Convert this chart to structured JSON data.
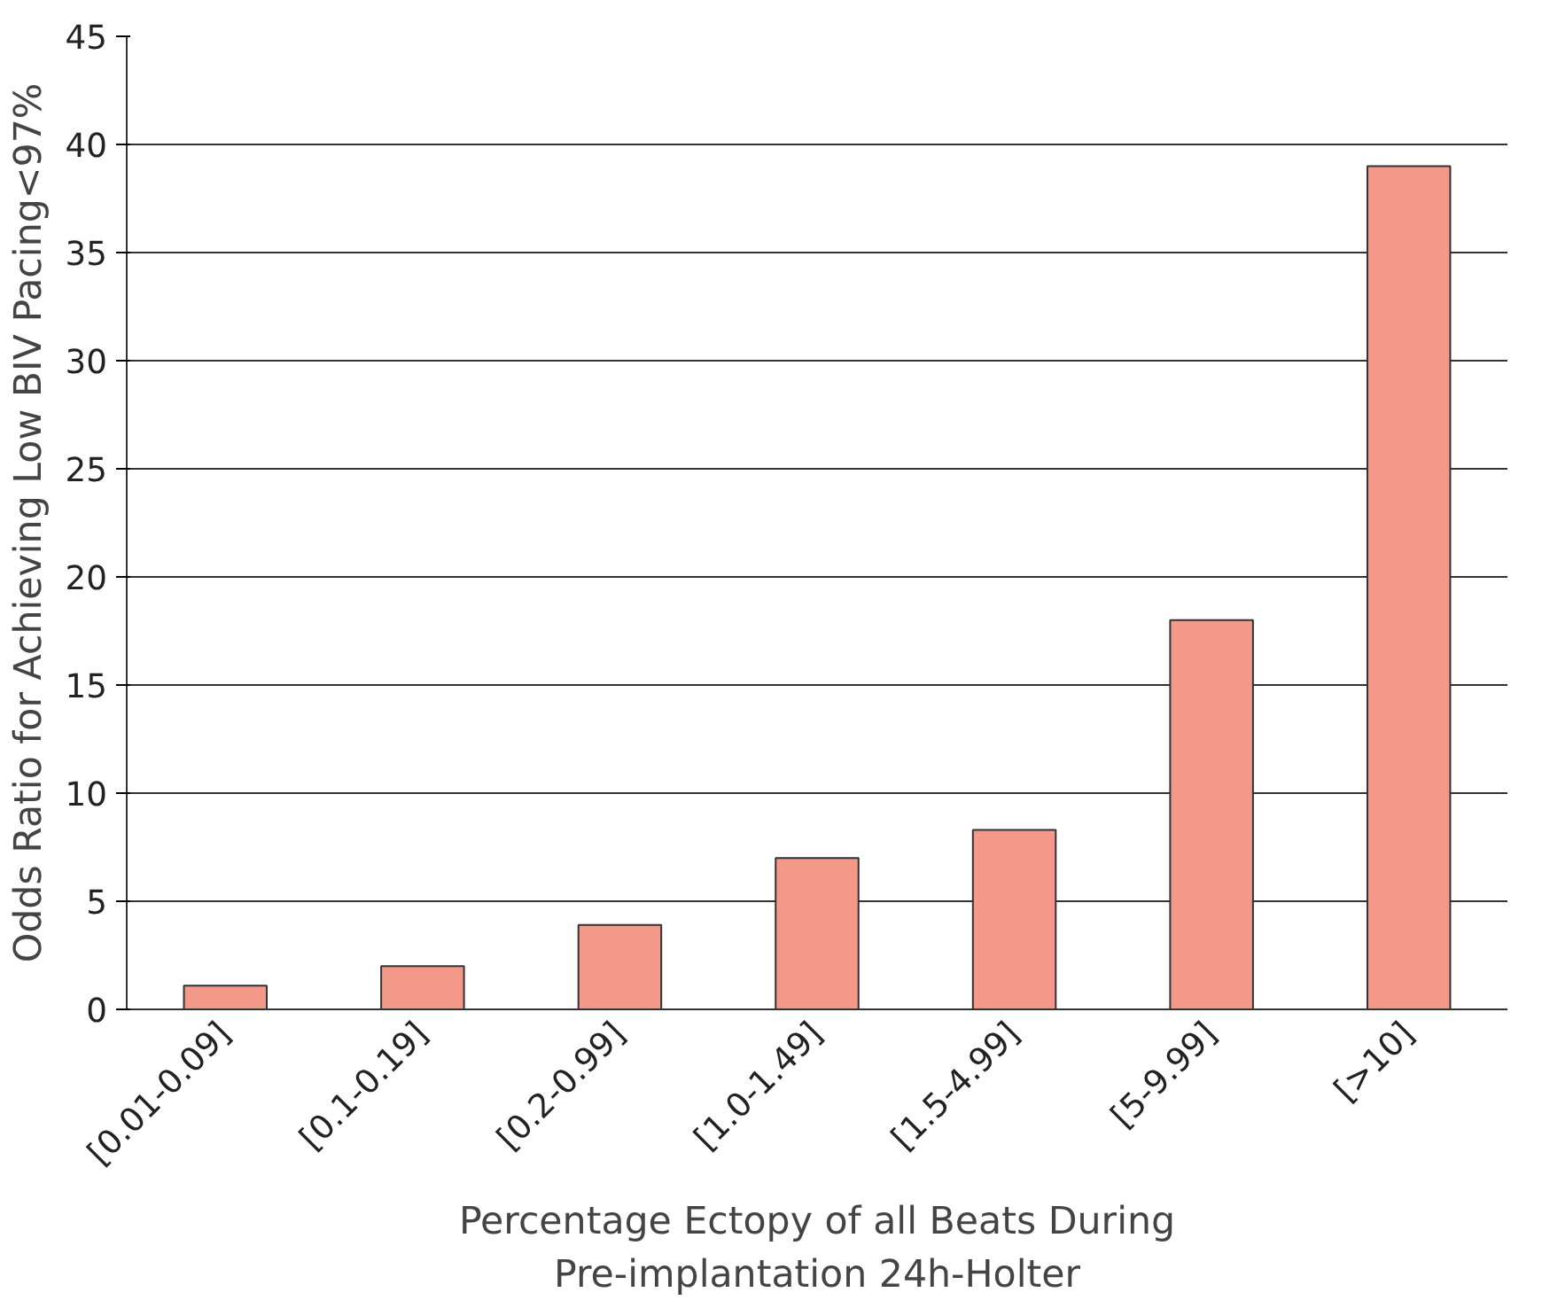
{
  "chart_data": {
    "type": "bar",
    "xlabel": "Percentage Ectopy of all Beats During\nPre-implantation 24h-Holter",
    "ylabel": "Odds Ratio for Achieving Low BIV Pacing<97%",
    "categories": [
      "[0.01-0.09]",
      "[0.1-0.19]",
      "[0.2-0.99]",
      "[1.0-1.49]",
      "[1.5-4.99]",
      "[5-9.99]",
      "[>10]"
    ],
    "values": [
      1.1,
      2.0,
      3.9,
      7.0,
      8.3,
      18.0,
      39.0
    ],
    "color": "#f4998a",
    "ylim": [
      0,
      45
    ],
    "yticks": [
      0,
      5,
      10,
      15,
      20,
      25,
      30,
      35,
      40,
      45
    ],
    "grid": "y"
  }
}
